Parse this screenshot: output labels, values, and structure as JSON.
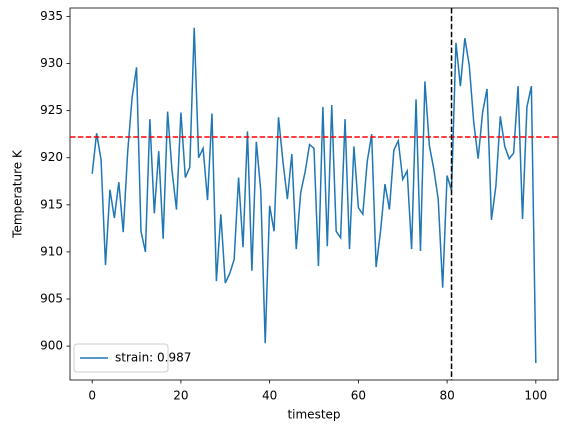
{
  "chart_data": {
    "type": "line",
    "xlabel": "timestep",
    "ylabel": "Temperature K",
    "x": [
      0,
      1,
      2,
      3,
      4,
      5,
      6,
      7,
      8,
      9,
      10,
      11,
      12,
      13,
      14,
      15,
      16,
      17,
      18,
      19,
      20,
      21,
      22,
      23,
      24,
      25,
      26,
      27,
      28,
      29,
      30,
      31,
      32,
      33,
      34,
      35,
      36,
      37,
      38,
      39,
      40,
      41,
      42,
      43,
      44,
      45,
      46,
      47,
      48,
      49,
      50,
      51,
      52,
      53,
      54,
      55,
      56,
      57,
      58,
      59,
      60,
      61,
      62,
      63,
      64,
      65,
      66,
      67,
      68,
      69,
      70,
      71,
      72,
      73,
      74,
      75,
      76,
      77,
      78,
      79,
      80,
      81,
      82,
      83,
      84,
      85,
      86,
      87,
      88,
      89,
      90,
      91,
      92,
      93,
      94,
      95,
      96,
      97,
      98,
      99,
      100
    ],
    "series": [
      {
        "name": "strain: 0.987",
        "color": "#1f77b4",
        "values": [
          918.3,
          922.6,
          919.8,
          908.6,
          916.6,
          913.6,
          917.4,
          912.1,
          920.6,
          926.4,
          929.6,
          912.2,
          910.0,
          924.1,
          914.1,
          920.7,
          911.4,
          924.9,
          918.6,
          914.5,
          924.8,
          917.9,
          919.0,
          933.8,
          920.0,
          921.0,
          915.5,
          924.7,
          906.9,
          914.0,
          906.7,
          907.7,
          909.2,
          917.9,
          910.5,
          922.8,
          908.0,
          921.7,
          916.5,
          900.3,
          914.9,
          912.2,
          924.3,
          919.6,
          915.6,
          920.4,
          910.3,
          916.3,
          918.5,
          921.4,
          921.0,
          908.5,
          925.4,
          910.6,
          925.6,
          912.2,
          911.5,
          924.1,
          910.3,
          921.2,
          914.7,
          914.0,
          919.6,
          922.5,
          908.4,
          912.2,
          917.2,
          914.5,
          920.8,
          921.8,
          917.7,
          918.6,
          910.3,
          926.2,
          910.1,
          928.1,
          921.3,
          918.8,
          915.6,
          906.2,
          918.1,
          916.5,
          932.2,
          927.6,
          932.7,
          929.8,
          923.8,
          919.9,
          924.8,
          927.3,
          913.4,
          917.0,
          924.4,
          921.2,
          919.9,
          920.5,
          927.6,
          913.5,
          925.4,
          927.6,
          898.2
        ]
      }
    ],
    "hline": {
      "value": 922.2,
      "color": "#ff0000"
    },
    "vline": {
      "value": 81,
      "color": "#000000"
    },
    "xlim": [
      -5,
      105
    ],
    "xticks": [
      0,
      20,
      40,
      60,
      80,
      100
    ],
    "ylim": [
      896.4,
      935.9
    ],
    "yticks": [
      900,
      905,
      910,
      915,
      920,
      925,
      930,
      935
    ],
    "legend": "lower left"
  }
}
